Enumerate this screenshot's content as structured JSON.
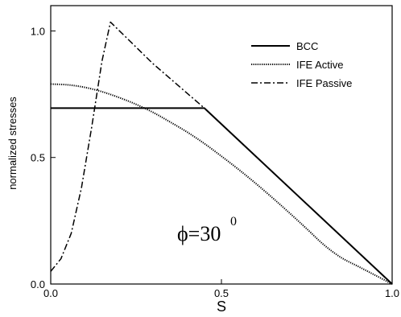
{
  "chart_data": {
    "type": "line",
    "title": "",
    "xlabel": "S",
    "ylabel": "normalized stresses",
    "xlim": [
      0,
      1
    ],
    "ylim": [
      0,
      1.1
    ],
    "x_ticks": [
      0.0,
      0.5,
      1.0
    ],
    "y_ticks": [
      0.0,
      0.5,
      1.0
    ],
    "x_tick_labels": [
      "0.0",
      "0.5",
      "1.0"
    ],
    "y_tick_labels": [
      "0.0",
      "0.5",
      "1.0"
    ],
    "grid": false,
    "legend_position": "top-right",
    "annotation": {
      "main": "ϕ=30",
      "superscript": "0",
      "x": 0.39,
      "y": 0.24
    },
    "series": [
      {
        "name": "BCC",
        "style": "solid",
        "color": "#000000",
        "x": [
          0.0,
          0.45,
          1.0
        ],
        "y": [
          0.695,
          0.695,
          0.0
        ]
      },
      {
        "name": "IFE Active",
        "style": "dotted",
        "color": "#000000",
        "x": [
          0.0,
          0.05,
          0.1,
          0.15,
          0.2,
          0.25,
          0.3,
          0.35,
          0.4,
          0.45,
          0.5,
          0.55,
          0.6,
          0.65,
          0.7,
          0.75,
          0.8,
          0.85,
          0.9,
          0.95,
          1.0
        ],
        "y": [
          0.79,
          0.787,
          0.777,
          0.76,
          0.737,
          0.71,
          0.678,
          0.64,
          0.6,
          0.555,
          0.505,
          0.453,
          0.398,
          0.34,
          0.28,
          0.218,
          0.155,
          0.105,
          0.07,
          0.035,
          0.0
        ]
      },
      {
        "name": "IFE Passive",
        "style": "dash-dot",
        "color": "#000000",
        "x": [
          0.0,
          0.03,
          0.06,
          0.09,
          0.12,
          0.15,
          0.175,
          0.3,
          0.45
        ],
        "y": [
          0.05,
          0.1,
          0.2,
          0.38,
          0.62,
          0.88,
          1.035,
          0.87,
          0.695
        ]
      }
    ]
  }
}
